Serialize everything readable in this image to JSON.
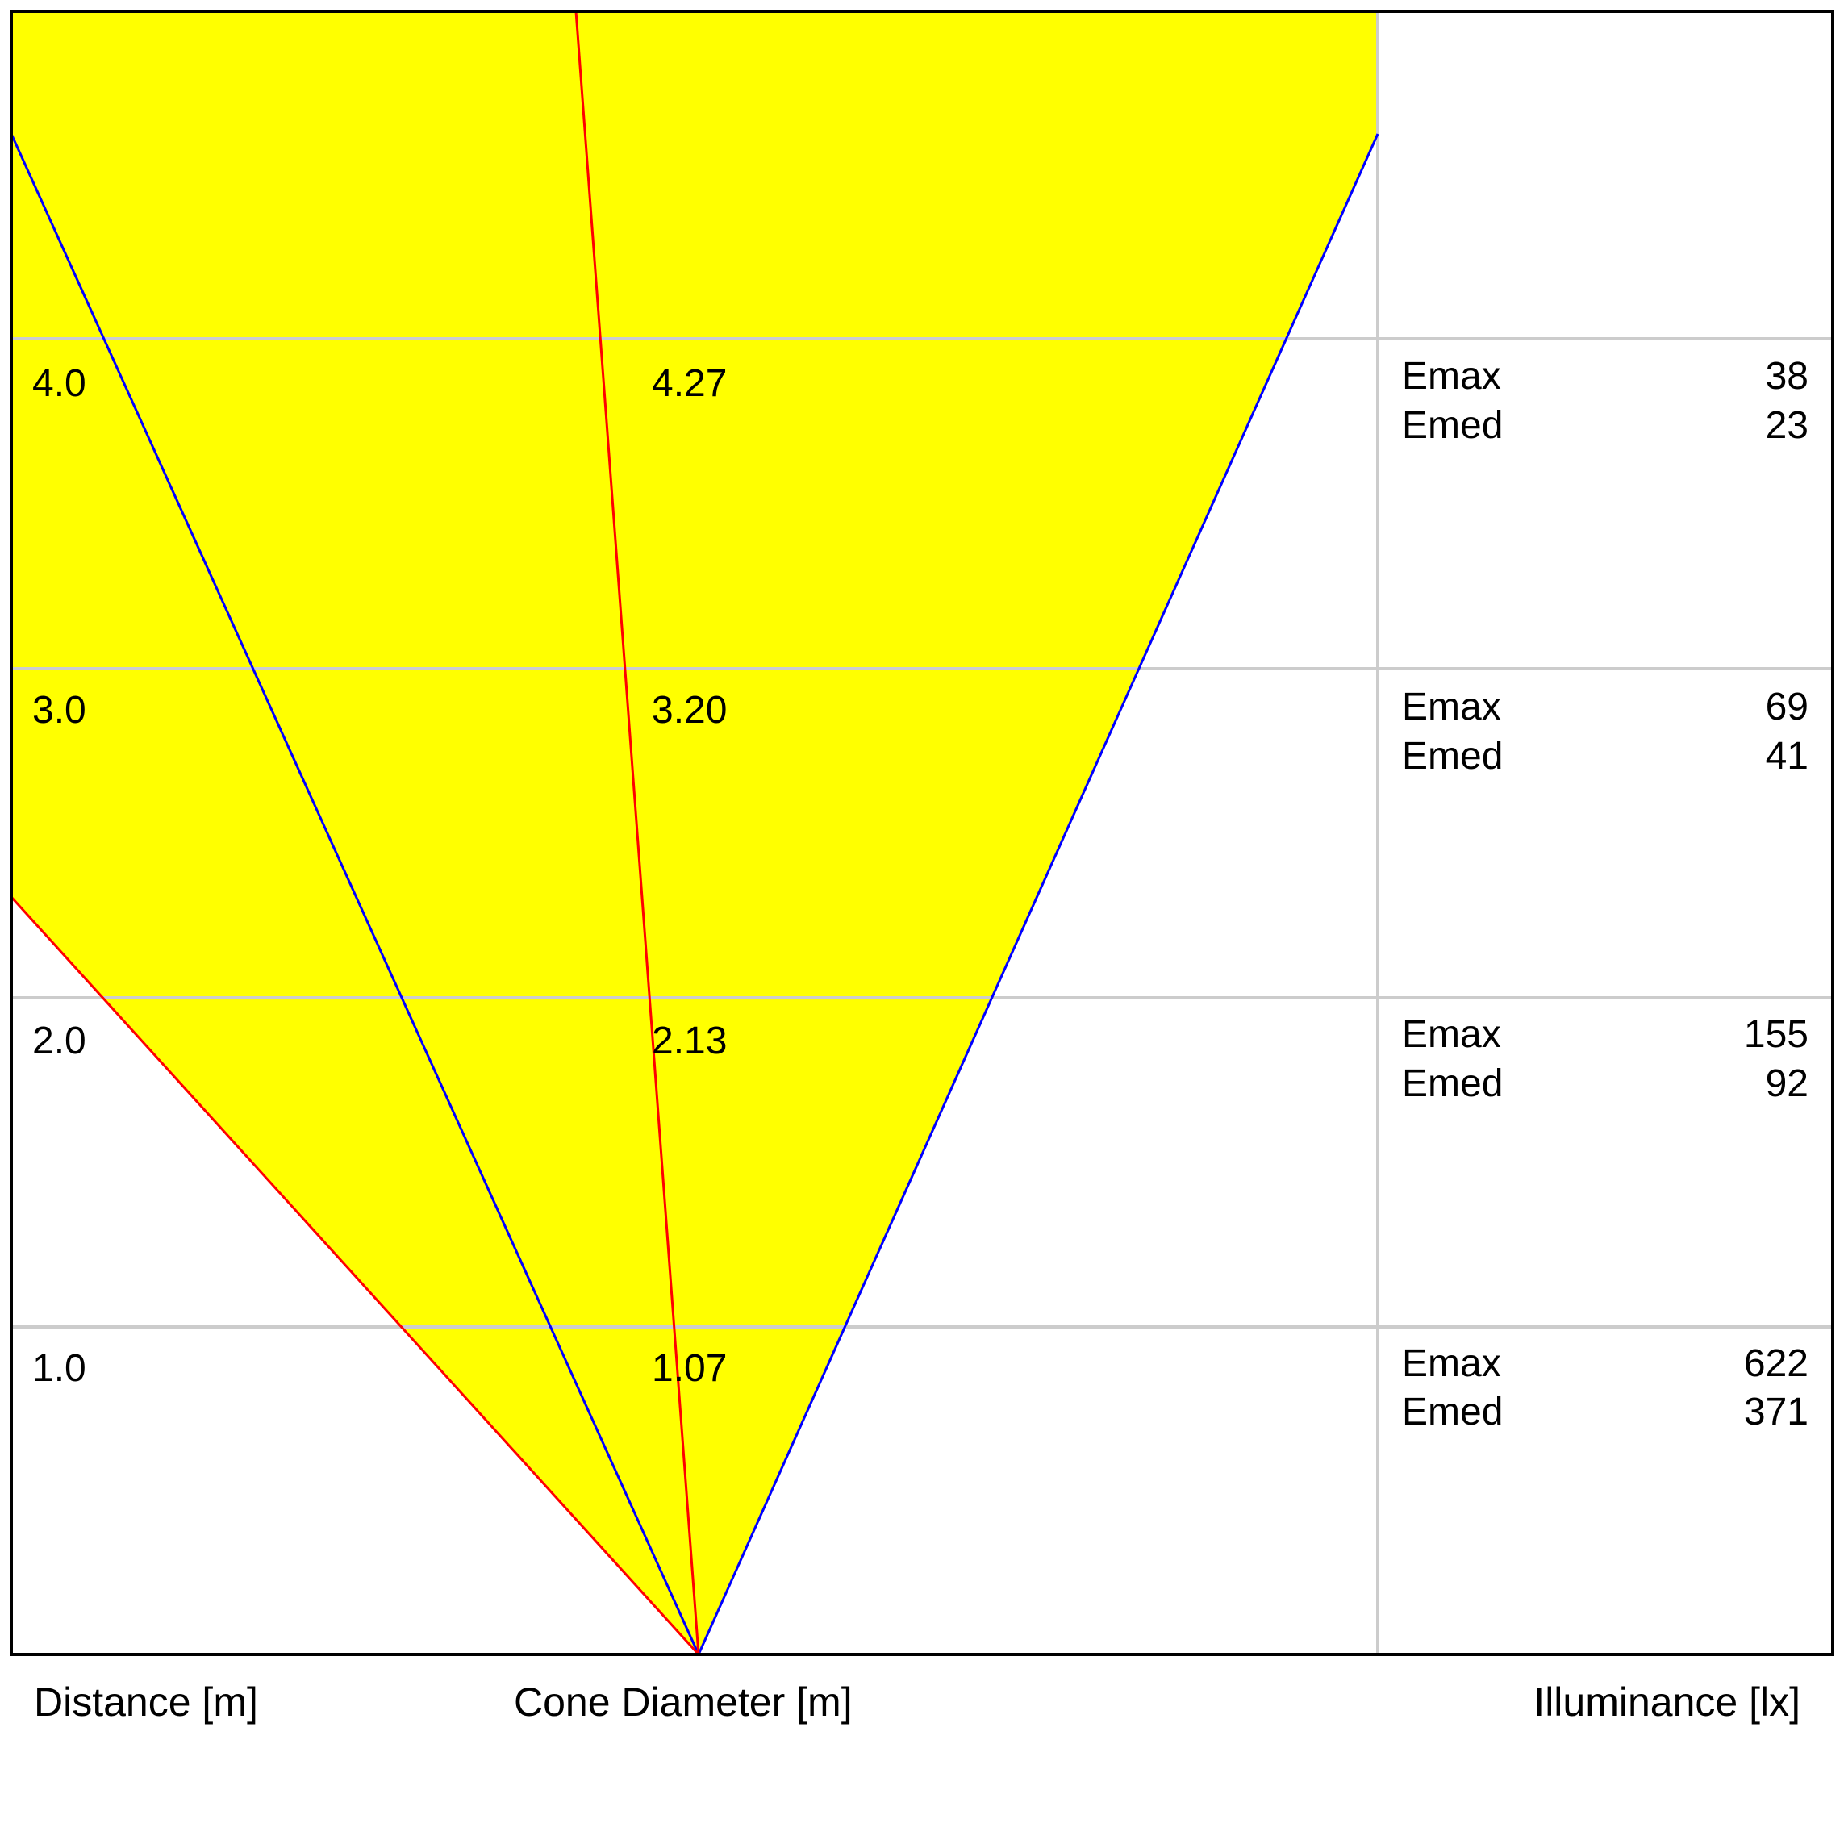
{
  "chart_data": {
    "type": "other",
    "footer": {
      "distance_label": "Distance [m]",
      "diameter_label": "Cone Diameter [m]",
      "illuminance_label": "Illuminance [lx]"
    },
    "rows": [
      {
        "distance": "1.0",
        "diameter": "1.07",
        "emax_label": "Emax",
        "emax": "622",
        "emed_label": "Emed",
        "emed": "371"
      },
      {
        "distance": "2.0",
        "diameter": "2.13",
        "emax_label": "Emax",
        "emax": "155",
        "emed_label": "Emed",
        "emed": "92"
      },
      {
        "distance": "3.0",
        "diameter": "3.20",
        "emax_label": "Emax",
        "emax": "69",
        "emed_label": "Emed",
        "emed": "41"
      },
      {
        "distance": "4.0",
        "diameter": "4.27",
        "emax_label": "Emax",
        "emax": "38",
        "emed_label": "Emed",
        "emed": "23"
      }
    ],
    "colors": {
      "cone_fill": "#ffff00",
      "half_angle_line": "#0000ff",
      "tilt_line": "#ff0000",
      "grid": "#cccccc",
      "frame": "#000000"
    }
  }
}
